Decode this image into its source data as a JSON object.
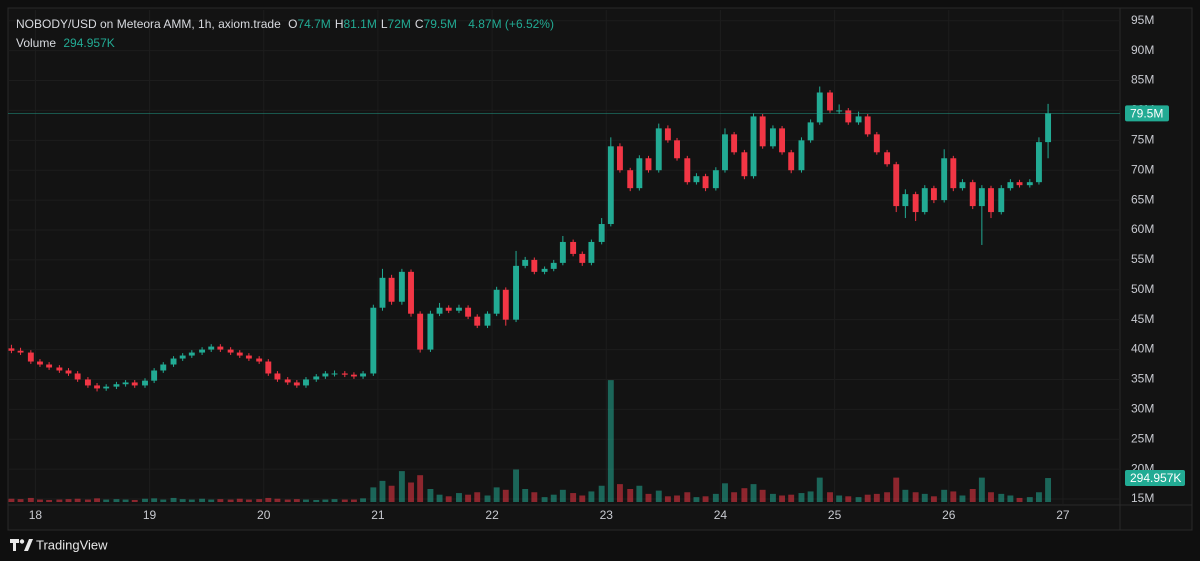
{
  "chart_data": {
    "type": "candlestick",
    "title": "NOBODY/USD on Meteora AMM, 1h, axiom.trade",
    "ohlc_header": [
      [
        "O",
        "74.7M"
      ],
      [
        "H",
        "81.1M"
      ],
      [
        "L",
        "72M"
      ],
      [
        "C",
        "79.5M"
      ]
    ],
    "change": "4.87M (+6.52%)",
    "volume_label": "Volume",
    "volume_value": "294.957K",
    "brand": "TradingView",
    "up_color": "#22ab94",
    "down_color": "#f23645",
    "grid": true,
    "xlim": [
      17.76,
      27.5
    ],
    "xticks": [
      18,
      19,
      20,
      21,
      22,
      23,
      24,
      25,
      26,
      27
    ],
    "ylim": [
      14,
      96.8
    ],
    "yticks": [
      {
        "value": 15,
        "label": "15M"
      },
      {
        "value": 20,
        "label": "20M"
      },
      {
        "value": 25,
        "label": "25M"
      },
      {
        "value": 30,
        "label": "30M"
      },
      {
        "value": 35,
        "label": "35M"
      },
      {
        "value": 40,
        "label": "40M"
      },
      {
        "value": 45,
        "label": "45M"
      },
      {
        "value": 50,
        "label": "50M"
      },
      {
        "value": 55,
        "label": "55M"
      },
      {
        "value": 60,
        "label": "60M"
      },
      {
        "value": 65,
        "label": "65M"
      },
      {
        "value": 70,
        "label": "70M"
      },
      {
        "value": 75,
        "label": "75M"
      },
      {
        "value": 80,
        "label": "80M"
      },
      {
        "value": 85,
        "label": "85M"
      },
      {
        "value": 90,
        "label": "90M"
      },
      {
        "value": 95,
        "label": "95M"
      }
    ],
    "vlim": [
      0,
      4000000
    ],
    "x": [
      17.79,
      17.87,
      17.96,
      18.04,
      18.12,
      18.21,
      18.29,
      18.37,
      18.46,
      18.54,
      18.62,
      18.71,
      18.79,
      18.87,
      18.96,
      19.04,
      19.12,
      19.21,
      19.29,
      19.37,
      19.46,
      19.54,
      19.62,
      19.71,
      19.79,
      19.87,
      19.96,
      20.04,
      20.12,
      20.21,
      20.29,
      20.37,
      20.46,
      20.54,
      20.62,
      20.71,
      20.79,
      20.87,
      20.96,
      21.04,
      21.12,
      21.21,
      21.29,
      21.37,
      21.46,
      21.54,
      21.62,
      21.71,
      21.79,
      21.87,
      21.96,
      22.04,
      22.12,
      22.21,
      22.29,
      22.37,
      22.46,
      22.54,
      22.62,
      22.71,
      22.79,
      22.87,
      22.96,
      23.04,
      23.12,
      23.21,
      23.29,
      23.37,
      23.46,
      23.54,
      23.62,
      23.71,
      23.79,
      23.87,
      23.96,
      24.04,
      24.12,
      24.21,
      24.29,
      24.37,
      24.46,
      24.54,
      24.62,
      24.71,
      24.79,
      24.87,
      24.96,
      25.04,
      25.12,
      25.21,
      25.29,
      25.37,
      25.46,
      25.54,
      25.62,
      25.71,
      25.79,
      25.87,
      25.96,
      26.04,
      26.12,
      26.21,
      26.29,
      26.37,
      26.46,
      26.54,
      26.62,
      26.71,
      26.79,
      26.87
    ],
    "candles": [
      [
        40.2,
        40.8,
        39.4,
        39.8
      ],
      [
        39.8,
        40.3,
        39.1,
        39.5
      ],
      [
        39.5,
        39.9,
        37.6,
        38.0
      ],
      [
        38.0,
        38.4,
        37.1,
        37.5
      ],
      [
        37.5,
        37.9,
        36.6,
        37.0
      ],
      [
        37.0,
        37.4,
        36.1,
        36.5
      ],
      [
        36.5,
        36.9,
        35.6,
        36.0
      ],
      [
        36.0,
        36.4,
        34.6,
        35.0
      ],
      [
        35.0,
        35.4,
        33.6,
        34.0
      ],
      [
        34.0,
        34.4,
        33.0,
        33.5
      ],
      [
        33.5,
        34.2,
        33.1,
        33.8
      ],
      [
        33.8,
        34.6,
        33.4,
        34.2
      ],
      [
        34.2,
        34.9,
        33.8,
        34.5
      ],
      [
        34.5,
        34.9,
        33.6,
        34.0
      ],
      [
        34.0,
        35.2,
        33.6,
        34.8
      ],
      [
        34.8,
        36.9,
        34.4,
        36.5
      ],
      [
        36.5,
        37.9,
        36.1,
        37.5
      ],
      [
        37.5,
        38.9,
        37.1,
        38.5
      ],
      [
        38.5,
        39.4,
        38.1,
        39.0
      ],
      [
        39.0,
        39.9,
        38.6,
        39.5
      ],
      [
        39.5,
        40.4,
        39.1,
        40.0
      ],
      [
        40.0,
        40.9,
        39.6,
        40.5
      ],
      [
        40.5,
        40.9,
        39.6,
        40.0
      ],
      [
        40.0,
        40.4,
        39.1,
        39.5
      ],
      [
        39.5,
        39.9,
        38.6,
        39.0
      ],
      [
        39.0,
        39.4,
        38.1,
        38.5
      ],
      [
        38.5,
        38.9,
        37.6,
        38.0
      ],
      [
        38.0,
        38.4,
        35.6,
        36.0
      ],
      [
        36.0,
        36.4,
        34.6,
        35.0
      ],
      [
        35.0,
        35.4,
        34.1,
        34.5
      ],
      [
        34.5,
        34.9,
        33.6,
        34.0
      ],
      [
        34.0,
        35.4,
        33.6,
        35.0
      ],
      [
        35.0,
        35.9,
        34.6,
        35.5
      ],
      [
        35.5,
        36.4,
        35.1,
        36.0
      ],
      [
        36.0,
        36.5,
        35.5,
        36.0
      ],
      [
        36.0,
        36.4,
        35.4,
        35.8
      ],
      [
        35.8,
        36.2,
        35.1,
        35.5
      ],
      [
        35.5,
        36.4,
        35.1,
        36.0
      ],
      [
        36.0,
        47.5,
        35.6,
        47.0
      ],
      [
        47.0,
        53.5,
        46.5,
        52.0
      ],
      [
        52.0,
        52.5,
        47.5,
        48.0
      ],
      [
        48.0,
        53.5,
        47.5,
        53.0
      ],
      [
        53.0,
        53.4,
        45.5,
        46.0
      ],
      [
        46.0,
        46.4,
        39.5,
        40.0
      ],
      [
        40.0,
        46.5,
        39.6,
        46.0
      ],
      [
        46.0,
        47.8,
        45.6,
        47.0
      ],
      [
        47.0,
        47.4,
        46.1,
        46.5
      ],
      [
        46.5,
        47.5,
        46.1,
        47.0
      ],
      [
        47.0,
        47.4,
        45.1,
        45.5
      ],
      [
        45.5,
        45.9,
        43.6,
        44.0
      ],
      [
        44.0,
        46.4,
        43.6,
        46.0
      ],
      [
        46.0,
        50.5,
        45.6,
        50.0
      ],
      [
        50.0,
        50.4,
        44.0,
        45.0
      ],
      [
        45.0,
        56.5,
        44.6,
        54.0
      ],
      [
        54.0,
        55.5,
        53.6,
        55.0
      ],
      [
        55.0,
        55.4,
        52.6,
        53.0
      ],
      [
        53.0,
        53.9,
        52.6,
        53.5
      ],
      [
        53.5,
        55.0,
        53.1,
        54.5
      ],
      [
        54.5,
        59.0,
        54.1,
        58.0
      ],
      [
        58.0,
        58.4,
        55.6,
        56.0
      ],
      [
        56.0,
        56.4,
        54.0,
        54.5
      ],
      [
        54.5,
        58.4,
        54.1,
        58.0
      ],
      [
        58.0,
        62.0,
        57.6,
        61.0
      ],
      [
        61.0,
        75.5,
        60.6,
        74.0
      ],
      [
        74.0,
        74.5,
        69.6,
        70.0
      ],
      [
        70.0,
        70.4,
        66.5,
        67.0
      ],
      [
        67.0,
        72.5,
        66.6,
        72.0
      ],
      [
        72.0,
        72.4,
        69.6,
        70.0
      ],
      [
        70.0,
        77.8,
        69.6,
        77.0
      ],
      [
        77.0,
        77.5,
        74.6,
        75.0
      ],
      [
        75.0,
        75.4,
        71.6,
        72.0
      ],
      [
        72.0,
        72.4,
        67.6,
        68.0
      ],
      [
        68.0,
        69.5,
        67.6,
        69.0
      ],
      [
        69.0,
        69.4,
        66.5,
        67.0
      ],
      [
        67.0,
        70.5,
        66.6,
        70.0
      ],
      [
        70.0,
        77.0,
        69.6,
        76.0
      ],
      [
        76.0,
        76.4,
        72.6,
        73.0
      ],
      [
        73.0,
        73.4,
        68.5,
        69.0
      ],
      [
        69.0,
        79.5,
        68.6,
        79.0
      ],
      [
        79.0,
        79.4,
        73.6,
        74.0
      ],
      [
        74.0,
        77.5,
        73.6,
        77.0
      ],
      [
        77.0,
        77.4,
        72.6,
        73.0
      ],
      [
        73.0,
        73.4,
        69.5,
        70.0
      ],
      [
        70.0,
        75.5,
        69.6,
        75.0
      ],
      [
        75.0,
        78.5,
        74.6,
        78.0
      ],
      [
        78.0,
        84.0,
        77.6,
        83.0
      ],
      [
        83.0,
        83.4,
        79.6,
        80.0
      ],
      [
        80.0,
        81.0,
        79.4,
        80.0
      ],
      [
        80.0,
        80.4,
        77.6,
        78.0
      ],
      [
        78.0,
        79.8,
        77.6,
        79.0
      ],
      [
        79.0,
        79.4,
        75.6,
        76.0
      ],
      [
        76.0,
        76.4,
        72.6,
        73.0
      ],
      [
        73.0,
        73.4,
        70.6,
        71.0
      ],
      [
        71.0,
        71.4,
        63.0,
        64.0
      ],
      [
        64.0,
        66.8,
        62.0,
        66.0
      ],
      [
        66.0,
        66.4,
        61.5,
        63.0
      ],
      [
        63.0,
        67.5,
        62.6,
        67.0
      ],
      [
        67.0,
        67.4,
        64.5,
        65.0
      ],
      [
        65.0,
        73.5,
        64.6,
        72.0
      ],
      [
        72.0,
        72.4,
        66.5,
        67.0
      ],
      [
        67.0,
        68.5,
        66.6,
        68.0
      ],
      [
        68.0,
        68.4,
        63.5,
        64.0
      ],
      [
        64.0,
        67.5,
        57.5,
        67.0
      ],
      [
        67.0,
        67.4,
        62.0,
        63.0
      ],
      [
        63.0,
        67.5,
        62.6,
        67.0
      ],
      [
        67.0,
        68.5,
        66.6,
        68.0
      ],
      [
        68.0,
        68.4,
        67.1,
        67.5
      ],
      [
        67.5,
        68.5,
        67.1,
        68.0
      ],
      [
        68.0,
        75.5,
        67.6,
        74.7
      ],
      [
        74.7,
        81.1,
        72.0,
        79.5
      ]
    ],
    "volume": [
      40000,
      35000,
      50000,
      30000,
      25000,
      30000,
      35000,
      40000,
      30000,
      45000,
      30000,
      35000,
      30000,
      25000,
      40000,
      45000,
      30000,
      50000,
      35000,
      30000,
      40000,
      30000,
      35000,
      30000,
      40000,
      30000,
      35000,
      50000,
      40000,
      30000,
      35000,
      30000,
      25000,
      30000,
      35000,
      30000,
      30000,
      45000,
      180000,
      260000,
      200000,
      380000,
      240000,
      330000,
      160000,
      90000,
      70000,
      110000,
      90000,
      120000,
      80000,
      180000,
      150000,
      400000,
      160000,
      120000,
      60000,
      90000,
      150000,
      110000,
      80000,
      130000,
      200000,
      1500000,
      220000,
      160000,
      200000,
      100000,
      140000,
      70000,
      80000,
      120000,
      60000,
      70000,
      100000,
      230000,
      120000,
      170000,
      220000,
      150000,
      100000,
      80000,
      90000,
      110000,
      130000,
      300000,
      120000,
      80000,
      70000,
      60000,
      90000,
      100000,
      120000,
      300000,
      150000,
      120000,
      100000,
      70000,
      150000,
      130000,
      80000,
      160000,
      300000,
      120000,
      100000,
      80000,
      50000,
      60000,
      120000,
      294957
    ]
  }
}
